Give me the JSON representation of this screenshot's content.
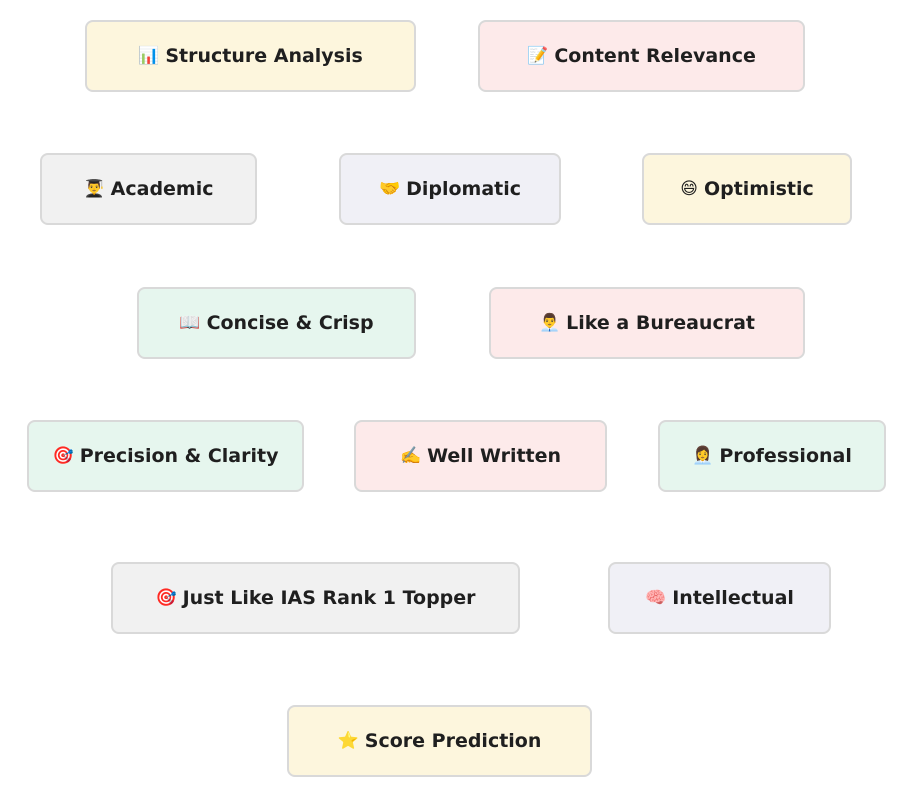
{
  "options": [
    {
      "icon": "📊",
      "icon_name": "bar-chart-icon",
      "label": "Structure Analysis"
    },
    {
      "icon": "📝",
      "icon_name": "memo-icon",
      "label": "Content Relevance"
    },
    {
      "icon": "👨‍🎓",
      "icon_name": "graduate-icon",
      "label": "Academic"
    },
    {
      "icon": "🤝",
      "icon_name": "handshake-icon",
      "label": "Diplomatic"
    },
    {
      "icon": "😄",
      "icon_name": "smile-icon",
      "label": "Optimistic"
    },
    {
      "icon": "📖",
      "icon_name": "book-icon",
      "label": "Concise & Crisp"
    },
    {
      "icon": "👨‍💼",
      "icon_name": "office-worker-icon",
      "label": "Like a Bureaucrat"
    },
    {
      "icon": "🎯",
      "icon_name": "target-icon",
      "label": "Precision & Clarity"
    },
    {
      "icon": "✍️",
      "icon_name": "writing-hand-icon",
      "label": "Well Written"
    },
    {
      "icon": "👩‍💼",
      "icon_name": "professional-icon",
      "label": "Professional"
    },
    {
      "icon": "🎯",
      "icon_name": "target-icon",
      "label": "Just Like IAS Rank 1 Topper"
    },
    {
      "icon": "🧠",
      "icon_name": "brain-icon",
      "label": "Intellectual"
    },
    {
      "icon": "⭐",
      "icon_name": "star-icon",
      "label": "Score Prediction"
    }
  ],
  "colors": {
    "yellow": "#fdf6dd",
    "pink": "#fdeaea",
    "grey": "#f1f1f1",
    "lavender": "#f0f0f6",
    "mint": "#e6f6ee",
    "border": "#d9d9d9"
  }
}
